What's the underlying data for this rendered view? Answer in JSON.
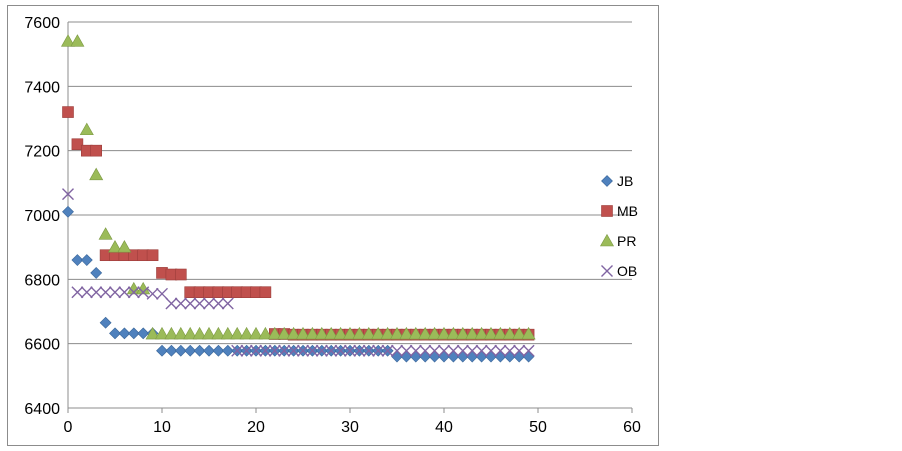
{
  "chart_data": {
    "type": "scatter",
    "title": "",
    "xlabel": "",
    "ylabel": "",
    "xlim": [
      0,
      60
    ],
    "ylim": [
      6400,
      7600
    ],
    "xticks": [
      0,
      10,
      20,
      30,
      40,
      50,
      60
    ],
    "yticks": [
      6400,
      6600,
      6800,
      7000,
      7200,
      7400,
      7600
    ],
    "xtick_labels": [
      "0",
      "10",
      "20",
      "30",
      "40",
      "50",
      "60"
    ],
    "ytick_labels": [
      "6400",
      "6600",
      "6800",
      "7000",
      "7200",
      "7400",
      "7600"
    ],
    "grid": "horizontal",
    "legend_position": "right",
    "series": [
      {
        "name": "JB",
        "marker": "diamond",
        "color": "#4f81bd",
        "x": [
          0,
          1,
          2,
          3,
          4,
          5,
          6,
          7,
          8,
          9,
          10,
          11,
          12,
          13,
          14,
          15,
          16,
          17,
          18,
          19,
          20,
          21,
          22,
          23,
          24,
          25,
          26,
          27,
          28,
          29,
          30,
          31,
          32,
          33,
          34,
          35,
          36,
          37,
          38,
          39,
          40,
          41,
          42,
          43,
          44,
          45,
          46,
          47,
          48,
          49
        ],
        "y": [
          7010,
          6860,
          6860,
          6820,
          6665,
          6632,
          6632,
          6632,
          6632,
          6632,
          6578,
          6578,
          6578,
          6578,
          6578,
          6578,
          6578,
          6578,
          6578,
          6578,
          6578,
          6578,
          6578,
          6578,
          6578,
          6578,
          6578,
          6578,
          6578,
          6578,
          6578,
          6578,
          6578,
          6578,
          6578,
          6560,
          6560,
          6560,
          6560,
          6560,
          6560,
          6560,
          6560,
          6560,
          6560,
          6560,
          6560,
          6560,
          6560,
          6560
        ]
      },
      {
        "name": "MB",
        "marker": "square",
        "color": "#c0504d",
        "x": [
          0,
          1,
          2,
          3,
          4,
          5,
          6,
          7,
          8,
          9,
          10,
          11,
          12,
          13,
          14,
          15,
          16,
          17,
          18,
          19,
          20,
          21,
          22,
          23,
          24,
          25,
          26,
          27,
          28,
          29,
          30,
          31,
          32,
          33,
          34,
          35,
          36,
          37,
          38,
          39,
          40,
          41,
          42,
          43,
          44,
          45,
          46,
          47,
          48,
          49
        ],
        "y": [
          7320,
          7220,
          7200,
          7200,
          6875,
          6875,
          6875,
          6875,
          6875,
          6875,
          6820,
          6815,
          6815,
          6760,
          6760,
          6760,
          6760,
          6760,
          6760,
          6760,
          6760,
          6760,
          6630,
          6630,
          6628,
          6628,
          6628,
          6628,
          6628,
          6628,
          6628,
          6628,
          6628,
          6628,
          6628,
          6628,
          6628,
          6628,
          6628,
          6628,
          6628,
          6628,
          6628,
          6628,
          6628,
          6628,
          6628,
          6628,
          6628,
          6628
        ]
      },
      {
        "name": "PR",
        "marker": "triangle",
        "color": "#9bbb59",
        "x": [
          0,
          1,
          2,
          3,
          4,
          5,
          6,
          7,
          8,
          9,
          10,
          11,
          12,
          13,
          14,
          15,
          16,
          17,
          18,
          19,
          20,
          21,
          22,
          23,
          24,
          25,
          26,
          27,
          28,
          29,
          30,
          31,
          32,
          33,
          34,
          35,
          36,
          37,
          38,
          39,
          40,
          41,
          42,
          43,
          44,
          45,
          46,
          47,
          48,
          49
        ],
        "y": [
          7540,
          7540,
          7265,
          7125,
          6940,
          6900,
          6900,
          6770,
          6770,
          6630,
          6630,
          6630,
          6630,
          6630,
          6630,
          6630,
          6630,
          6630,
          6630,
          6630,
          6630,
          6630,
          6630,
          6630,
          6630,
          6630,
          6630,
          6630,
          6630,
          6630,
          6630,
          6630,
          6630,
          6630,
          6630,
          6630,
          6630,
          6630,
          6630,
          6630,
          6630,
          6630,
          6630,
          6630,
          6630,
          6630,
          6630,
          6630,
          6630,
          6630
        ]
      },
      {
        "name": "OB",
        "marker": "x",
        "color": "#8064a2",
        "x": [
          0,
          1,
          2,
          3,
          4,
          5,
          6,
          7,
          8,
          9,
          10,
          11,
          12,
          13,
          14,
          15,
          16,
          17,
          18,
          19,
          20,
          21,
          22,
          23,
          24,
          25,
          26,
          27,
          28,
          29,
          30,
          31,
          32,
          33,
          34,
          35,
          36,
          37,
          38,
          39,
          40,
          41,
          42,
          43,
          44,
          45,
          46,
          47,
          48,
          49
        ],
        "y": [
          7065,
          6760,
          6760,
          6760,
          6760,
          6760,
          6760,
          6760,
          6760,
          6755,
          6755,
          6725,
          6725,
          6725,
          6725,
          6725,
          6725,
          6725,
          6578,
          6578,
          6578,
          6578,
          6578,
          6578,
          6578,
          6578,
          6578,
          6578,
          6578,
          6578,
          6578,
          6578,
          6578,
          6578,
          6578,
          6578,
          6578,
          6578,
          6578,
          6578,
          6578,
          6578,
          6578,
          6578,
          6578,
          6578,
          6578,
          6578,
          6578,
          6578
        ]
      }
    ]
  }
}
